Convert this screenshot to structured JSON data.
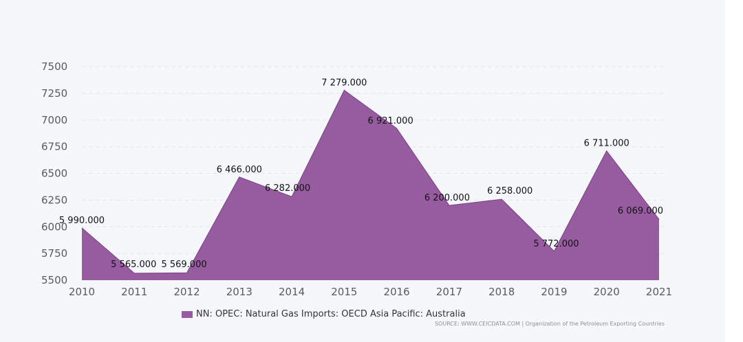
{
  "colors": {
    "series_fill": "#975ca0",
    "series_line": "#7a3e86",
    "background": "#f5f7fa"
  },
  "chart_data": {
    "type": "area",
    "title": "",
    "xlabel": "",
    "ylabel": "",
    "x": [
      "2010",
      "2011",
      "2012",
      "2013",
      "2014",
      "2015",
      "2016",
      "2017",
      "2018",
      "2019",
      "2020",
      "2021"
    ],
    "series": [
      {
        "name": "NN: OPEC: Natural Gas Imports: OECD Asia Pacific: Australia",
        "values": [
          5990,
          5565,
          5569,
          6466,
          6282,
          7279,
          6921,
          6200,
          6258,
          5772,
          6711,
          6069
        ],
        "labels": [
          "5 990.000",
          "5 565.000",
          "5 569.000",
          "6 466.000",
          "6 282.000",
          "7 279.000",
          "6 921.000",
          "6 200.000",
          "6 258.000",
          "5 772.000",
          "6 711.000",
          "6 069.000"
        ]
      }
    ],
    "ylim": [
      5500,
      7500
    ],
    "yticks": [
      5500,
      5750,
      6000,
      6250,
      6500,
      6750,
      7000,
      7250,
      7500
    ],
    "grid": true,
    "legend": "bottom-center"
  },
  "legend": {
    "label": "NN: OPEC: Natural Gas Imports: OECD Asia Pacific: Australia"
  },
  "source": {
    "text": "SOURCE: WWW.CEICDATA.COM | Organization of the Petroleum Exporting Countries"
  }
}
